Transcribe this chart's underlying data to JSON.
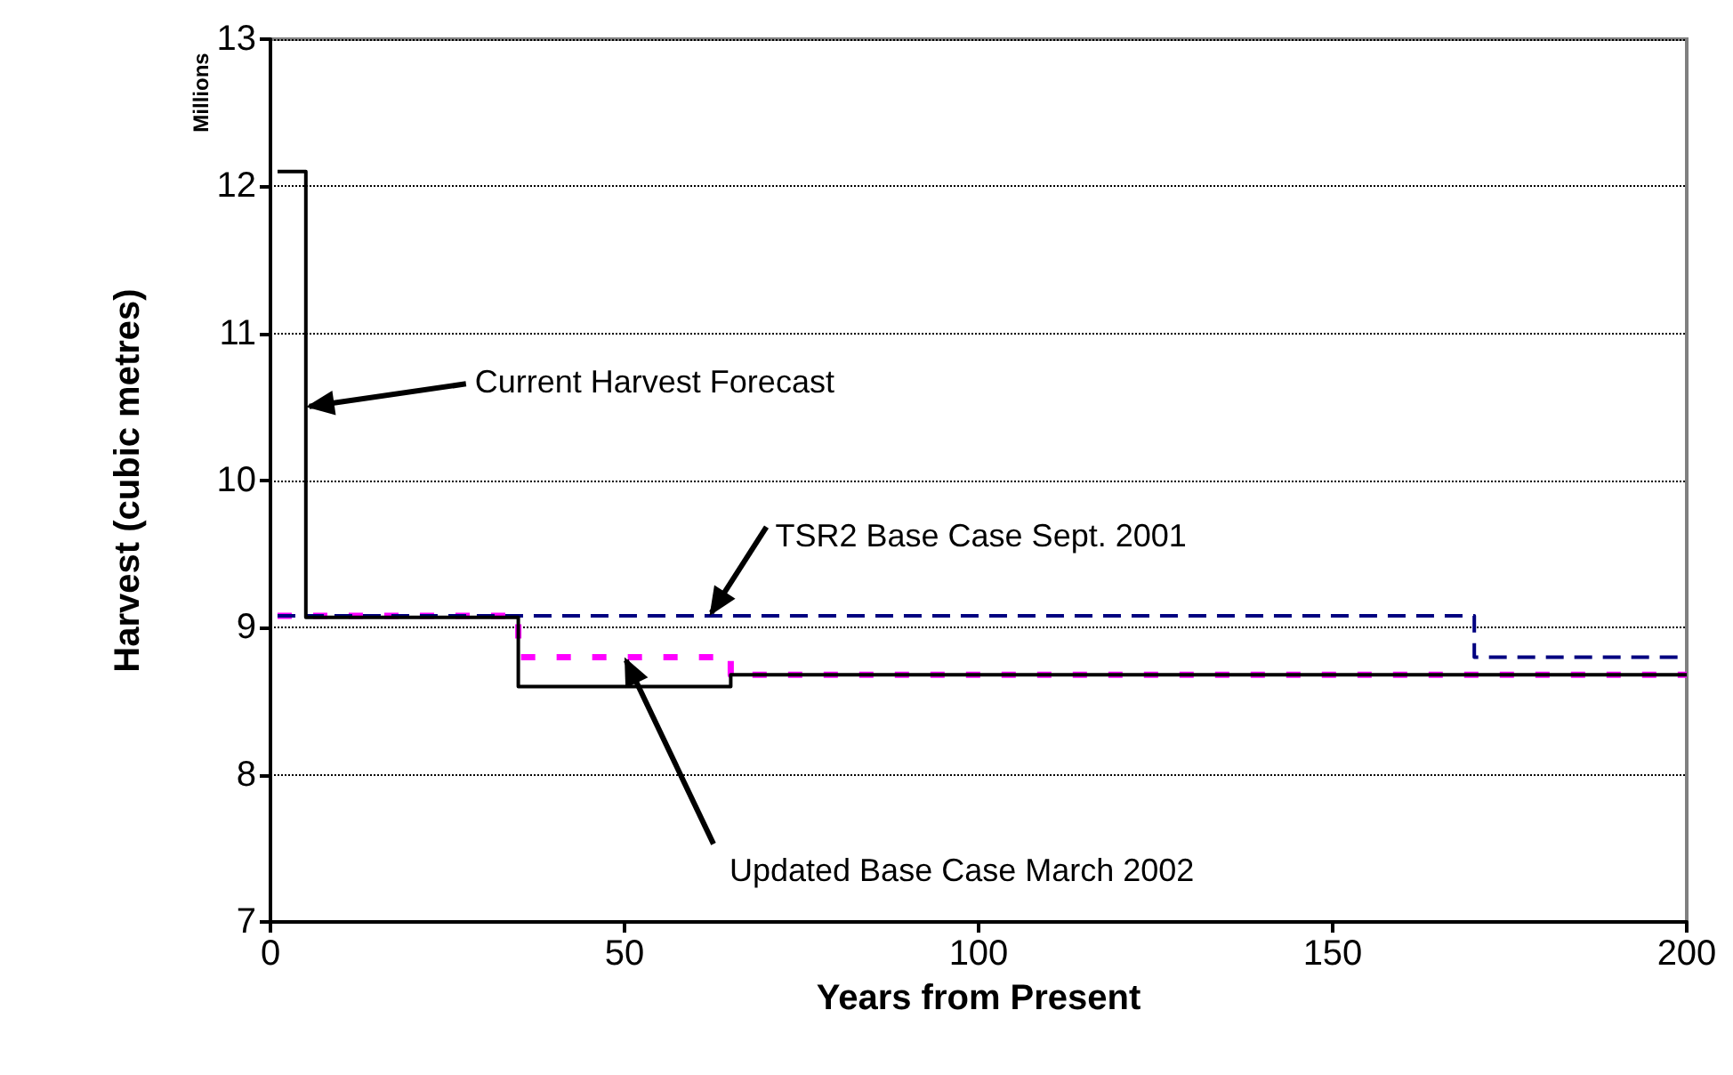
{
  "chart_data": {
    "type": "step",
    "xlabel": "Years from Present",
    "ylabel": "Harvest (cubic metres)",
    "xlim": [
      0,
      200
    ],
    "xticks": [
      0,
      50,
      100,
      150,
      200
    ],
    "ylim": [
      7,
      13
    ],
    "yticks": [
      7,
      8,
      9,
      10,
      11,
      12,
      13
    ],
    "grid": "y",
    "series": [
      {
        "x": [
          1,
          5,
          35,
          65,
          200
        ],
        "values": [
          12.1,
          9.07,
          8.6,
          8.68,
          8.68
        ],
        "color": "#000000",
        "line_style": "solid"
      },
      {
        "x": [
          1,
          170,
          200
        ],
        "values": [
          9.08,
          8.8,
          8.8
        ],
        "color": "#000080",
        "line_style": "dashed"
      },
      {
        "x": [
          1,
          35,
          65,
          200
        ],
        "values": [
          9.08,
          8.8,
          8.68,
          8.68
        ],
        "color": "#ff00ff",
        "line_style": "dashed"
      }
    ],
    "annotations": [
      {
        "text": "Current Harvest Forecast",
        "x": 5,
        "y": 10.5
      },
      {
        "text": "TSR2 Base Case Sept. 2001",
        "x": 62,
        "y": 9.08
      },
      {
        "text": "Updated Base Case March 2002",
        "x": 50,
        "y": 8.8
      },
      "Millions"
    ]
  }
}
